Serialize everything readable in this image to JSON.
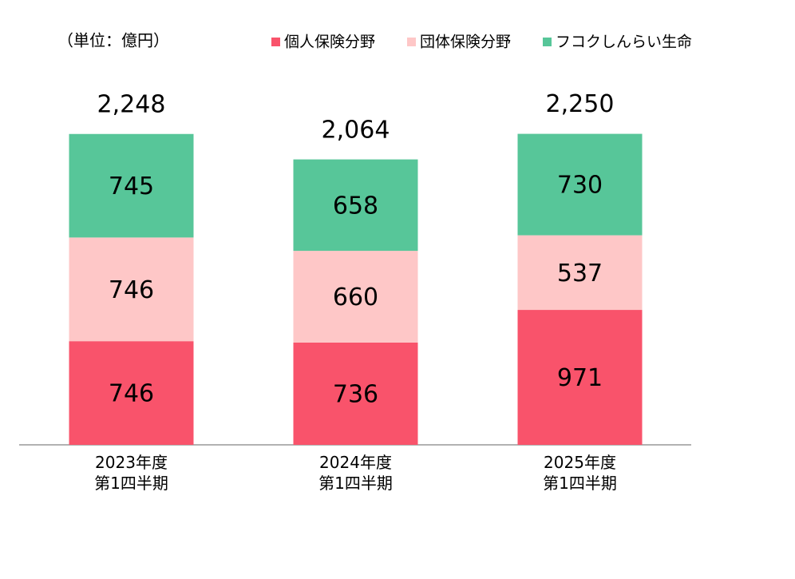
{
  "chart_data": {
    "type": "stacked_bar",
    "title": "（単位：億円）",
    "categories": [
      "2023年度\n第1四半期",
      "2024年度\n第1四半期",
      "2025年度\n第1四半期"
    ],
    "series": [
      {
        "name": "個人保険分野",
        "color": "#f9536b",
        "values": [
          746,
          736,
          971
        ]
      },
      {
        "name": "団体保険分野",
        "color": "#fec7c7",
        "values": [
          746,
          660,
          537
        ]
      },
      {
        "name": "フコクしんらい生命",
        "color": "#57c699",
        "values": [
          745,
          658,
          730
        ]
      }
    ],
    "totals": [
      2248,
      2064,
      2250
    ],
    "total_labels": [
      "2,248",
      "2,064",
      "2,250"
    ],
    "ylim": [
      0,
      2500
    ]
  }
}
